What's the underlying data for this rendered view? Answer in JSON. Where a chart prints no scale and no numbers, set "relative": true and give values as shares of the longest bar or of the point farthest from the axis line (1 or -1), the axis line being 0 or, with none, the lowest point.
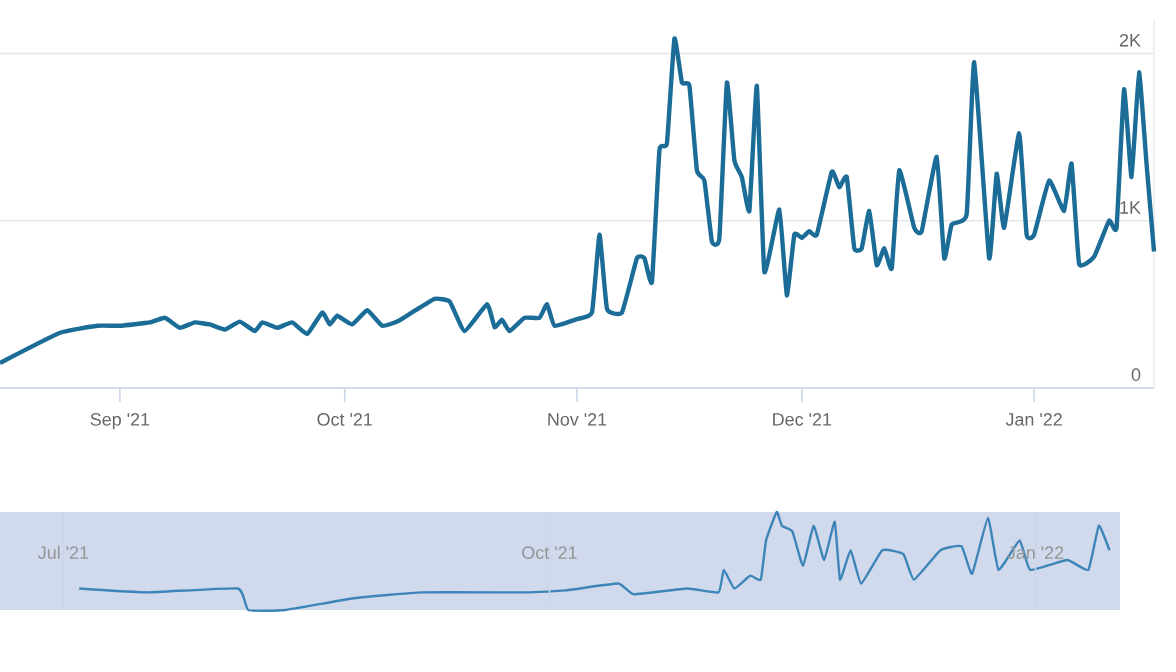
{
  "chart_data": [
    {
      "type": "line",
      "xlim": [
        "2021-08-16",
        "2022-01-17"
      ],
      "ylim": [
        0,
        2200
      ],
      "xticks": [
        {
          "value": "2021-09-01",
          "label": "Sep '21"
        },
        {
          "value": "2021-10-01",
          "label": "Oct '21"
        },
        {
          "value": "2021-11-01",
          "label": "Nov '21"
        },
        {
          "value": "2021-12-01",
          "label": "Dec '21"
        },
        {
          "value": "2022-01-01",
          "label": "Jan '22"
        }
      ],
      "yticks": [
        {
          "value": 0,
          "label": "0"
        },
        {
          "value": 1000,
          "label": "1K"
        },
        {
          "value": 2000,
          "label": "2K"
        }
      ],
      "grid": "y",
      "series": [
        {
          "color": "#1b6d98",
          "x": [
            "2021-08-16",
            "2021-08-24",
            "2021-08-29",
            "2021-09-01",
            "2021-09-05",
            "2021-09-07",
            "2021-09-09",
            "2021-09-11",
            "2021-09-13",
            "2021-09-15",
            "2021-09-17",
            "2021-09-19",
            "2021-09-20",
            "2021-09-22",
            "2021-09-24",
            "2021-09-26",
            "2021-09-28",
            "2021-09-29",
            "2021-09-30",
            "2021-10-02",
            "2021-10-04",
            "2021-10-06",
            "2021-10-08",
            "2021-10-10",
            "2021-10-13",
            "2021-10-15",
            "2021-10-17",
            "2021-10-20",
            "2021-10-21",
            "2021-10-22",
            "2021-10-23",
            "2021-10-25",
            "2021-10-27",
            "2021-10-28",
            "2021-10-29",
            "2021-11-01",
            "2021-11-03",
            "2021-11-04",
            "2021-11-05",
            "2021-11-07",
            "2021-11-09",
            "2021-11-10",
            "2021-11-11",
            "2021-11-12",
            "2021-11-13",
            "2021-11-14",
            "2021-11-15",
            "2021-11-16",
            "2021-11-17",
            "2021-11-18",
            "2021-11-19",
            "2021-11-20",
            "2021-11-21",
            "2021-11-22",
            "2021-11-23",
            "2021-11-24",
            "2021-11-25",
            "2021-11-26",
            "2021-11-28",
            "2021-11-29",
            "2021-11-30",
            "2021-12-01",
            "2021-12-02",
            "2021-12-03",
            "2021-12-05",
            "2021-12-06",
            "2021-12-07",
            "2021-12-08",
            "2021-12-09",
            "2021-12-10",
            "2021-12-11",
            "2021-12-12",
            "2021-12-13",
            "2021-12-14",
            "2021-12-16",
            "2021-12-17",
            "2021-12-19",
            "2021-12-20",
            "2021-12-21",
            "2021-12-23",
            "2021-12-24",
            "2021-12-26",
            "2021-12-27",
            "2021-12-28",
            "2021-12-30",
            "2021-12-31",
            "2022-01-01",
            "2022-01-03",
            "2022-01-05",
            "2022-01-06",
            "2022-01-07",
            "2022-01-09",
            "2022-01-11",
            "2022-01-12",
            "2022-01-13",
            "2022-01-14",
            "2022-01-15",
            "2022-01-16",
            "2022-01-17"
          ],
          "values": [
            150,
            330,
            372,
            372,
            392,
            420,
            360,
            392,
            380,
            350,
            397,
            340,
            392,
            360,
            392,
            323,
            452,
            380,
            432,
            380,
            465,
            372,
            397,
            452,
            533,
            517,
            340,
            501,
            364,
            408,
            340,
            420,
            420,
            501,
            372,
            412,
            452,
            917,
            473,
            452,
            776,
            776,
            634,
            1422,
            1463,
            2089,
            1826,
            1806,
            1301,
            1240,
            876,
            897,
            1826,
            1361,
            1261,
            1059,
            1806,
            695,
            1067,
            554,
            917,
            897,
            937,
            917,
            1293,
            1200,
            1261,
            836,
            836,
            1059,
            735,
            836,
            715,
            1301,
            958,
            937,
            1382,
            776,
            977,
            1039,
            1947,
            776,
            1281,
            958,
            1523,
            917,
            917,
            1240,
            1059,
            1341,
            743,
            784,
            1000,
            958,
            1786,
            1261,
            1887,
            1341,
            816
          ]
        }
      ]
    },
    {
      "type": "line",
      "relative": true,
      "xlim": [
        "2021-06-19",
        "2022-01-17"
      ],
      "xticks": [
        {
          "value": "2021-07-01",
          "label": "Jul '21"
        },
        {
          "value": "2021-10-01",
          "label": "Oct '21"
        },
        {
          "value": "2022-01-01",
          "label": "Jan '22"
        }
      ],
      "grid": "x",
      "bands": [
        {
          "axis": "x",
          "from": "2021-06-19",
          "to": "2022-01-17",
          "color": "#d1d9ec"
        }
      ],
      "series": [
        {
          "color": "#3d85b8",
          "x": [
            "2021-07-04",
            "2021-07-17",
            "2021-08-03",
            "2021-08-05",
            "2021-08-12",
            "2021-08-25",
            "2021-09-07",
            "2021-09-27",
            "2021-10-04",
            "2021-10-14",
            "2021-10-17",
            "2021-10-27",
            "2021-11-02",
            "2021-11-03",
            "2021-11-05",
            "2021-11-08",
            "2021-11-10",
            "2021-11-11",
            "2021-11-13",
            "2021-11-14",
            "2021-11-16",
            "2021-11-18",
            "2021-11-20",
            "2021-11-22",
            "2021-11-24",
            "2021-11-25",
            "2021-11-27",
            "2021-11-29",
            "2021-12-03",
            "2021-12-07",
            "2021-12-09",
            "2021-12-14",
            "2021-12-18",
            "2021-12-20",
            "2021-12-23",
            "2021-12-25",
            "2021-12-29",
            "2021-12-31",
            "2022-01-07",
            "2022-01-11",
            "2022-01-13",
            "2022-01-15"
          ],
          "values": [
            0.22,
            0.18,
            0.22,
            0,
            0,
            0.12,
            0.18,
            0.18,
            0.2,
            0.27,
            0.16,
            0.22,
            0.18,
            0.41,
            0.22,
            0.35,
            0.31,
            0.71,
            1,
            0.86,
            0.8,
            0.45,
            0.86,
            0.51,
            0.9,
            0.31,
            0.61,
            0.27,
            0.61,
            0.57,
            0.31,
            0.61,
            0.65,
            0.37,
            0.94,
            0.41,
            0.71,
            0.41,
            0.51,
            0.41,
            0.86,
            0.61
          ]
        }
      ]
    }
  ]
}
